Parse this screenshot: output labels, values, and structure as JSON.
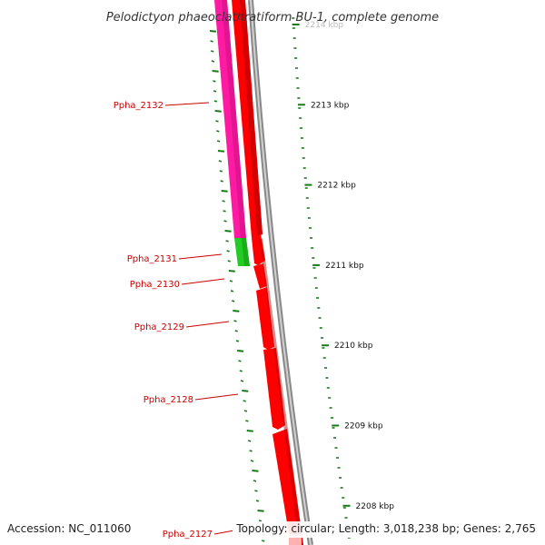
{
  "title": "Pelodictyon phaeoclathratiform BU-1, complete genome",
  "footer": {
    "accession": "Accession: NC_011060",
    "summary": "Topology: circular; Length: 3,018,238 bp; Genes: 2,765"
  },
  "scale_ticks": [
    {
      "label": "2214 kbp"
    },
    {
      "label": "2213 kbp"
    },
    {
      "label": "2212 kbp"
    },
    {
      "label": "2211 kbp"
    },
    {
      "label": "2210 kbp"
    },
    {
      "label": "2209 kbp"
    },
    {
      "label": "2208 kbp"
    }
  ],
  "genes": [
    {
      "label": "Ppha_2132",
      "color": "#ff1aa3"
    },
    {
      "label": "Ppha_2131",
      "color": "#22cc22"
    },
    {
      "label": "Ppha_2130",
      "color": "#ff0000"
    },
    {
      "label": "Ppha_2129",
      "color": "#ff0000"
    },
    {
      "label": "Ppha_2128",
      "color": "#ff0000"
    },
    {
      "label": "Ppha_2127",
      "color": "#ff0000"
    }
  ],
  "colors": {
    "backbone": "#888888",
    "gc_ticks": "#1a7a1a",
    "orf_forward": "#ff0000",
    "label_red": "#cc0000"
  }
}
